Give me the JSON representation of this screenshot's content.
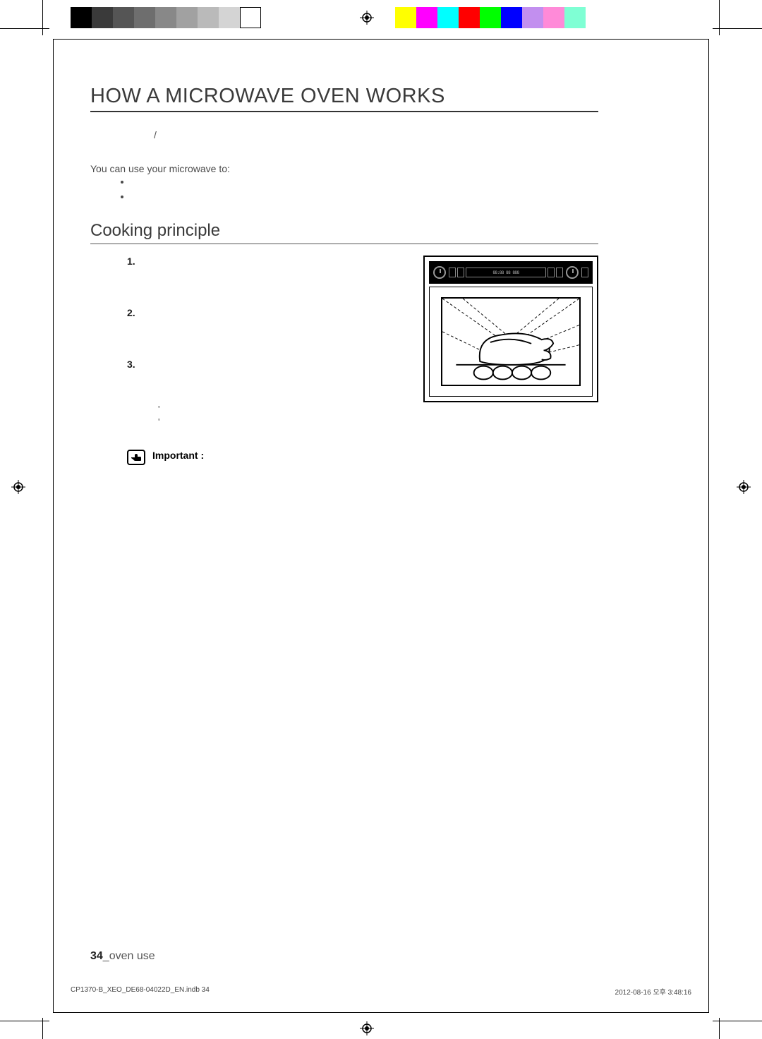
{
  "colorbars": {
    "left": [
      "#000000",
      "#3a3a3a",
      "#555555",
      "#6e6e6e",
      "#888888",
      "#a1a1a1",
      "#bababa",
      "#d4d4d4",
      "#ffffff"
    ],
    "right": [
      "#ffff00",
      "#ff00ff",
      "#00ffff",
      "#ff0000",
      "#00ff00",
      "#0000ff",
      "#c28fef",
      "#ff8ad8",
      "#7fffd4"
    ],
    "swatch_width": 30
  },
  "crop": {
    "color": "#000000"
  },
  "heading": "HOW A MICROWAVE OVEN WORKS",
  "intro_slash": "/",
  "uses_label": "You can use your microwave to:",
  "bullets": [
    "",
    ""
  ],
  "subheading": "Cooking principle",
  "principles": [
    {
      "num": "1.",
      "text": ""
    },
    {
      "num": "2.",
      "text": ""
    },
    {
      "num": "3.",
      "text": ""
    }
  ],
  "sub_marks": [
    "'",
    "'"
  ],
  "important_label": "Important :",
  "footer": {
    "page": "34",
    "sep": "_",
    "section": "oven use"
  },
  "imprint": {
    "file": "CP1370-B_XEO_DE68-04022D_EN.indb   34",
    "stamp": "2012-08-16   오후 3:48:16"
  },
  "oven": {
    "panel_bg": "#000000",
    "display_text": "88:88 88 888"
  }
}
